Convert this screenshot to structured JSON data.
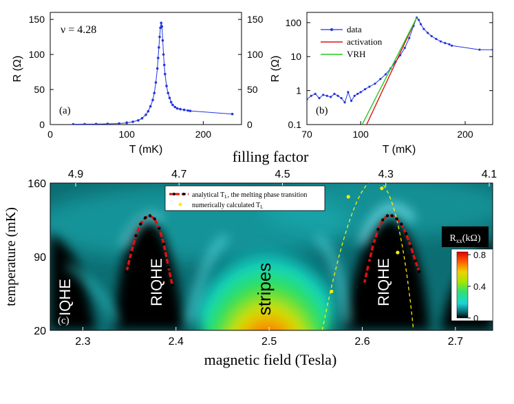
{
  "chart_data": [
    {
      "panel": "(a)",
      "type": "line",
      "annotation": "ν = 4.28",
      "xlabel": "T (mK)",
      "ylabel": "R (Ω)",
      "xlim": [
        0,
        250
      ],
      "ylim": [
        0,
        160
      ],
      "xticks": [
        "0",
        "100",
        "200"
      ],
      "yticks": [
        "0",
        "50",
        "100",
        "150"
      ],
      "yticks_right": [
        "0",
        "50",
        "100",
        "150"
      ],
      "series": [
        {
          "color": "#2233dd",
          "x": [
            30,
            45,
            60,
            75,
            90,
            100,
            108,
            115,
            120,
            125,
            128,
            131,
            134,
            136,
            138,
            140,
            141,
            142,
            143,
            144,
            145,
            146,
            147,
            148,
            149,
            150,
            152,
            154,
            156,
            158,
            160,
            163,
            166,
            170,
            175,
            180,
            183,
            238
          ],
          "y": [
            0.5,
            0.6,
            0.8,
            1,
            1.5,
            2.5,
            4,
            6,
            9,
            14,
            19,
            26,
            35,
            45,
            60,
            80,
            95,
            110,
            125,
            138,
            145,
            140,
            120,
            100,
            85,
            72,
            55,
            45,
            38,
            32,
            28,
            25,
            23,
            22,
            21,
            20,
            19.5,
            15
          ]
        }
      ]
    },
    {
      "panel": "(b)",
      "type": "line",
      "xlabel": "T (mK)",
      "ylabel": "R (Ω)",
      "xscale": "log",
      "yscale": "log",
      "xlim": [
        70,
        240
      ],
      "ylim": [
        0.1,
        200
      ],
      "xticks": [
        "70",
        "100",
        "200"
      ],
      "yticks": [
        "0.1",
        "1",
        "10",
        "100"
      ],
      "legend_position": "top-left",
      "series": [
        {
          "name": "data",
          "color": "#2233dd",
          "x": [
            70,
            72,
            74,
            76,
            78,
            80,
            82,
            84,
            86,
            88,
            90,
            92,
            94,
            96,
            98,
            100,
            103,
            106,
            110,
            114,
            118,
            122,
            126,
            130,
            134,
            138,
            142,
            145,
            147,
            149,
            152,
            156,
            160,
            165,
            170,
            175,
            180,
            183,
            220,
            240
          ],
          "y": [
            0.55,
            0.7,
            0.8,
            0.6,
            0.75,
            0.7,
            0.65,
            0.8,
            0.7,
            0.6,
            0.45,
            0.9,
            0.5,
            0.7,
            0.8,
            0.9,
            1.1,
            1.3,
            1.6,
            2.2,
            3,
            4.5,
            7,
            11,
            18,
            35,
            80,
            140,
            120,
            90,
            65,
            50,
            40,
            33,
            28,
            25,
            23,
            21,
            16,
            16
          ]
        },
        {
          "name": "activation",
          "color": "#dd1111",
          "x": [
            104,
            145
          ],
          "y": [
            0.1,
            140
          ]
        },
        {
          "name": "VRH",
          "color": "#22cc22",
          "x": [
            101,
            145
          ],
          "y": [
            0.1,
            140
          ]
        }
      ]
    },
    {
      "panel": "(c)",
      "type": "heatmap",
      "xlabel": "magnetic field (Tesla)",
      "ylabel": "temperature (mK)",
      "top_axis_label": "filling factor",
      "xlim": [
        2.265,
        2.74
      ],
      "ylim": [
        20,
        160
      ],
      "xticks": [
        "2.3",
        "2.4",
        "2.5",
        "2.6",
        "2.7"
      ],
      "yticks": [
        "20",
        "90",
        "160"
      ],
      "top_ticks": [
        "4.9",
        "4.7",
        "4.5",
        "4.3",
        "4.1"
      ],
      "region_labels": [
        "IQHE",
        "RIQHE",
        "stripes",
        "RIQHE"
      ],
      "colorbar": {
        "title": "R",
        "title_sub": "xx",
        "title_unit": "(kΩ)",
        "ticks": [
          "0",
          "0.4",
          "0.8"
        ],
        "range": [
          0,
          0.8
        ]
      },
      "legend_position": "top-center",
      "legend": [
        {
          "label": "analytical T",
          "sub": "L",
          "suffix": ", the melting phase transition",
          "color": "#dd1111"
        },
        {
          "label": "numerically calculated T",
          "sub": "L",
          "suffix": "",
          "color": "#ffee00"
        }
      ],
      "analytical_TL": [
        {
          "x": [
            2.347,
            2.352,
            2.357,
            2.362,
            2.367,
            2.372,
            2.377,
            2.382,
            2.387,
            2.392,
            2.396
          ],
          "y": [
            76,
            94,
            110,
            121,
            127,
            129,
            126,
            117,
            102,
            80,
            63
          ]
        },
        {
          "x": [
            2.602,
            2.607,
            2.612,
            2.617,
            2.622,
            2.627,
            2.632,
            2.637,
            2.642,
            2.647,
            2.652,
            2.657,
            2.661
          ],
          "y": [
            64,
            84,
            102,
            116,
            125,
            129,
            129,
            126,
            121,
            112,
            100,
            86,
            76
          ]
        }
      ],
      "numerical_TL": [
        {
          "x": 2.585,
          "y": 147
        },
        {
          "x": 2.621,
          "y": 155
        },
        {
          "x": 2.638,
          "y": 94
        },
        {
          "x": 2.567,
          "y": 57
        }
      ]
    }
  ]
}
